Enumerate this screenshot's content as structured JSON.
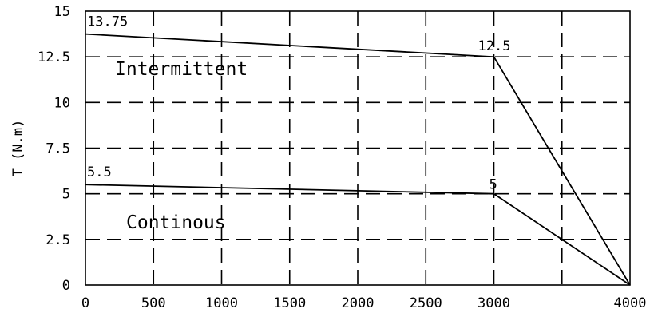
{
  "chart_data": {
    "type": "line",
    "ylabel": "T (N.m)",
    "xlabel": "",
    "xlim": [
      0,
      4000
    ],
    "ylim": [
      0,
      15
    ],
    "x_ticks": [
      0,
      500,
      1000,
      1500,
      2000,
      2500,
      3000,
      3500,
      4000
    ],
    "x_tick_labels": [
      "0",
      "500",
      "1000",
      "1500",
      "2000",
      "2500",
      "3000",
      "",
      "4000"
    ],
    "y_ticks": [
      0,
      2.5,
      5,
      7.5,
      10,
      12.5,
      15
    ],
    "y_tick_labels": [
      "0",
      "2.5",
      "5",
      "7.5",
      "10",
      "12.5",
      "15"
    ],
    "grid": true,
    "series": [
      {
        "name": "Intermittent",
        "x": [
          0,
          3000,
          4000
        ],
        "y": [
          13.75,
          12.5,
          0
        ]
      },
      {
        "name": "Continous",
        "x": [
          0,
          3000,
          4000
        ],
        "y": [
          5.5,
          5,
          0
        ]
      }
    ],
    "annotations": [
      {
        "text": "13.75",
        "x": 0,
        "y": 13.75
      },
      {
        "text": "12.5",
        "x": 3000,
        "y": 12.5
      },
      {
        "text": "5.5",
        "x": 0,
        "y": 5.5
      },
      {
        "text": "5",
        "x": 3000,
        "y": 5
      }
    ]
  }
}
